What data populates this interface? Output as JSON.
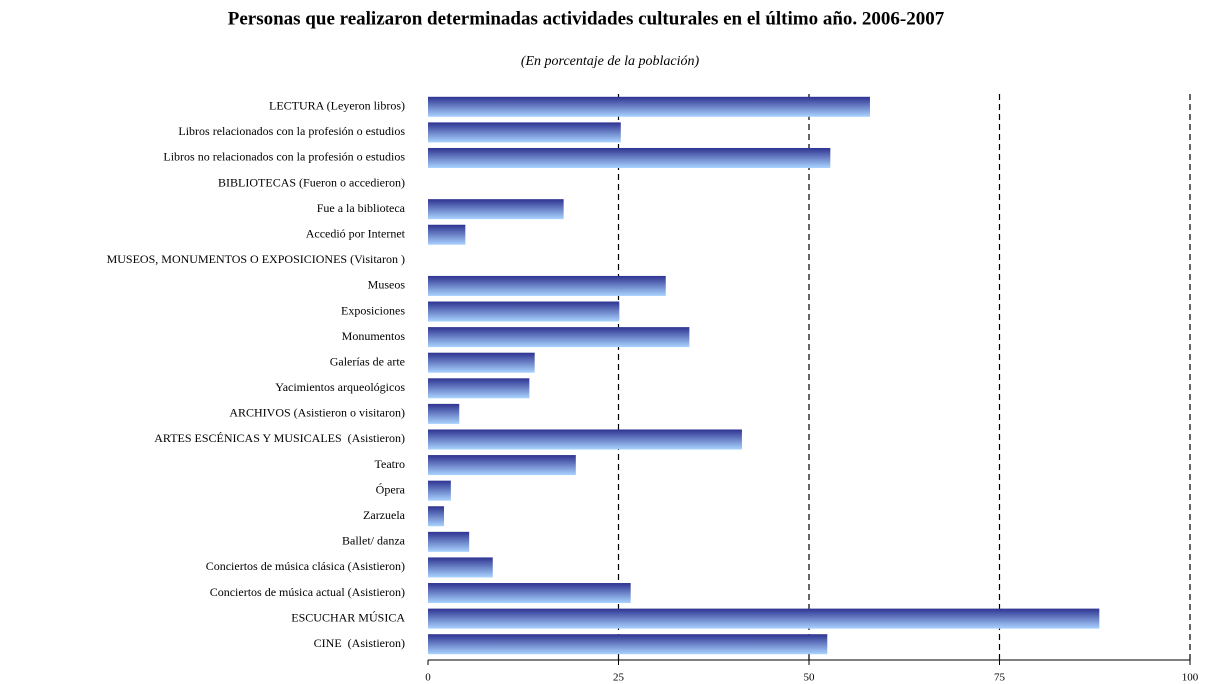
{
  "chart_data": {
    "type": "hbar",
    "title": "Personas que realizaron determinadas actividades culturales en el último año. 2006-2007",
    "subtitle": "(En porcentaje de la población)",
    "categories": [
      "LECTURA (Leyeron libros)",
      "Libros relacionados con la profesión o estudios",
      "Libros no relacionados con la profesión o estudios",
      "BIBLIOTECAS (Fueron o accedieron)",
      "Fue a la biblioteca",
      "Accedió por Internet",
      "MUSEOS, MONUMENTOS O EXPOSICIONES (Visitaron )",
      "Museos",
      "Exposiciones",
      "Monumentos",
      "Galerías de arte",
      "Yacimientos arqueológicos",
      "ARCHIVOS (Asistieron o visitaron)",
      "ARTES ESCÉNICAS Y MUSICALES  (Asistieron)",
      "Teatro",
      "Ópera",
      "Zarzuela",
      "Ballet/ danza",
      "Conciertos de música clásica (Asistieron)",
      "Conciertos de música actual (Asistieron)",
      "ESCUCHAR MÚSICA",
      "CINE  (Asistieron)"
    ],
    "values": [
      58.0,
      25.3,
      52.8,
      null,
      17.8,
      4.9,
      null,
      31.2,
      25.1,
      34.3,
      14.0,
      13.3,
      4.1,
      41.2,
      19.4,
      3.0,
      2.1,
      5.4,
      8.5,
      26.6,
      88.1,
      52.4
    ],
    "gradient": [
      "#2e3390",
      "#a9d3ff"
    ],
    "xlim": [
      0,
      100
    ],
    "xticks": [
      0,
      25,
      50,
      75,
      100
    ],
    "grid": true
  }
}
